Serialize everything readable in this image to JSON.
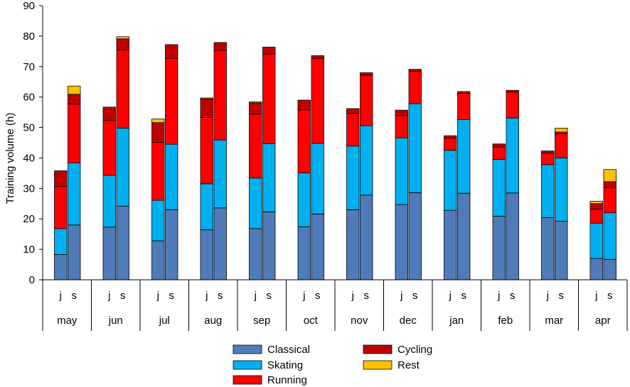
{
  "chart_data": {
    "type": "bar",
    "stacked": true,
    "ylabel": "Training volume (h)",
    "xlabel": "",
    "ylim": [
      0,
      90
    ],
    "yticks": [
      0,
      10,
      20,
      30,
      40,
      50,
      60,
      70,
      80,
      90
    ],
    "grid": false,
    "legend_position": "bottom",
    "months": [
      "may",
      "jun",
      "jul",
      "aug",
      "sep",
      "oct",
      "nov",
      "dec",
      "jan",
      "feb",
      "mar",
      "apr"
    ],
    "groups": [
      "j",
      "s"
    ],
    "series": [
      {
        "name": "Classical",
        "color": "#4F7BB8",
        "j": [
          8.3,
          17.3,
          12.8,
          16.4,
          16.8,
          17.4,
          23.0,
          24.7,
          22.8,
          20.9,
          20.4,
          7.0
        ],
        "s": [
          18.0,
          24.2,
          23.0,
          23.6,
          22.3,
          21.6,
          27.8,
          28.6,
          28.4,
          28.5,
          19.2,
          6.7
        ]
      },
      {
        "name": "Skating",
        "color": "#00B0F0",
        "j": [
          8.5,
          17.0,
          13.3,
          15.1,
          16.6,
          17.7,
          20.9,
          21.9,
          19.7,
          18.6,
          17.4,
          11.6
        ],
        "s": [
          20.4,
          25.6,
          21.5,
          22.3,
          22.4,
          23.2,
          22.8,
          29.2,
          24.2,
          24.6,
          20.8,
          15.3
        ]
      },
      {
        "name": "Running",
        "color": "#FF0000",
        "j": [
          13.8,
          18.0,
          19.0,
          21.8,
          21.0,
          20.7,
          10.8,
          7.3,
          4.0,
          4.1,
          3.8,
          4.6
        ],
        "s": [
          19.3,
          25.7,
          28.2,
          29.4,
          29.4,
          27.9,
          16.6,
          10.6,
          8.6,
          8.6,
          7.9,
          8.3
        ]
      },
      {
        "name": "Cycling",
        "color": "#C00000",
        "j": [
          5.2,
          4.4,
          6.5,
          6.1,
          3.7,
          3.2,
          1.5,
          1.8,
          0.8,
          1.0,
          0.7,
          1.8
        ],
        "s": [
          3.2,
          3.6,
          4.5,
          2.6,
          2.3,
          0.9,
          0.8,
          0.7,
          0.6,
          0.5,
          0.6,
          1.9
        ]
      },
      {
        "name": "Rest",
        "color": "#FFC000",
        "j": [
          0.0,
          0.0,
          1.2,
          0.3,
          0.3,
          0.0,
          0.0,
          0.0,
          0.0,
          0.0,
          0.0,
          0.8
        ],
        "s": [
          2.7,
          0.7,
          0.0,
          0.0,
          0.0,
          0.0,
          0.0,
          0.0,
          0.0,
          0.0,
          1.3,
          4.0
        ]
      }
    ]
  }
}
